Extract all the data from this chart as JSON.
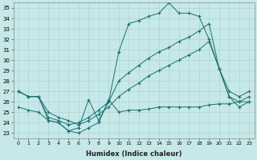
{
  "xlabel": "Humidex (Indice chaleur)",
  "background_color": "#c6e8e8",
  "grid_color": "#aed4d4",
  "line_color": "#1a7070",
  "xlim": [
    -0.5,
    23.5
  ],
  "ylim": [
    22.5,
    35.5
  ],
  "yticks": [
    23,
    24,
    25,
    26,
    27,
    28,
    29,
    30,
    31,
    32,
    33,
    34,
    35
  ],
  "xticks": [
    0,
    1,
    2,
    3,
    4,
    5,
    6,
    7,
    8,
    9,
    10,
    11,
    12,
    13,
    14,
    15,
    16,
    17,
    18,
    19,
    20,
    21,
    22,
    23
  ],
  "series": [
    {
      "x": [
        0,
        1,
        2,
        3,
        4,
        5,
        6,
        7,
        8,
        9,
        10,
        11,
        12,
        13,
        14,
        15,
        16,
        17,
        18,
        19,
        20,
        21,
        22,
        23
      ],
      "y": [
        27,
        26.5,
        26.5,
        24.2,
        24.0,
        23.2,
        23.5,
        26.2,
        24.2,
        26.0,
        30.8,
        33.5,
        33.8,
        34.2,
        34.5,
        35.5,
        34.5,
        34.5,
        34.2,
        32.0,
        29.2,
        27.0,
        26.5,
        27.0
      ]
    },
    {
      "x": [
        0,
        1,
        2,
        3,
        4,
        5,
        6,
        7,
        8,
        9,
        10,
        11,
        12,
        13,
        14,
        15,
        16,
        17,
        18,
        19,
        20,
        21,
        22,
        23
      ],
      "y": [
        27,
        26.5,
        26.5,
        24.5,
        24.2,
        23.8,
        24.0,
        24.5,
        25.2,
        26.0,
        28.0,
        28.8,
        29.5,
        30.2,
        30.8,
        31.2,
        31.8,
        32.2,
        32.8,
        33.5,
        29.2,
        26.5,
        26.0,
        26.5
      ]
    },
    {
      "x": [
        0,
        1,
        2,
        3,
        4,
        5,
        6,
        7,
        8,
        9,
        10,
        11,
        12,
        13,
        14,
        15,
        16,
        17,
        18,
        19,
        20,
        21,
        22,
        23
      ],
      "y": [
        27,
        26.5,
        26.5,
        25.0,
        24.5,
        24.2,
        23.8,
        24.2,
        24.8,
        25.5,
        26.5,
        27.2,
        27.8,
        28.5,
        29.0,
        29.5,
        30.0,
        30.5,
        31.0,
        31.8,
        29.2,
        26.5,
        25.5,
        26.0
      ]
    },
    {
      "x": [
        0,
        1,
        2,
        3,
        4,
        5,
        6,
        7,
        8,
        9,
        10,
        11,
        12,
        13,
        14,
        15,
        16,
        17,
        18,
        19,
        20,
        21,
        22,
        23
      ],
      "y": [
        25.5,
        25.2,
        25.0,
        24.2,
        24.0,
        23.2,
        23.0,
        23.5,
        24.0,
        26.2,
        25.0,
        25.2,
        25.2,
        25.3,
        25.5,
        25.5,
        25.5,
        25.5,
        25.5,
        25.7,
        25.8,
        25.8,
        26.0,
        26.0
      ]
    }
  ]
}
